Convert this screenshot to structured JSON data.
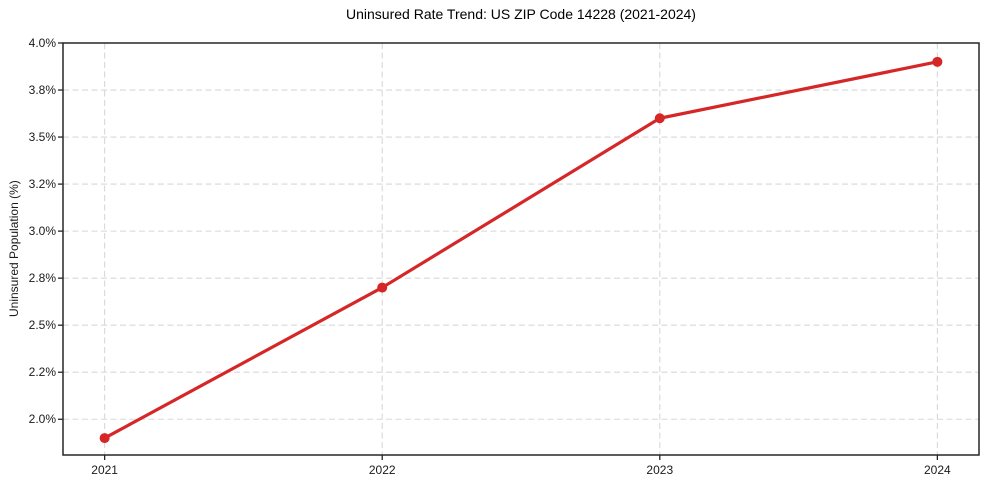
{
  "chart_data": {
    "type": "line",
    "title": "Uninsured Rate Trend: US ZIP Code 14228 (2021-2024)",
    "xlabel": "",
    "ylabel": "Uninsured Population (%)",
    "x": [
      2021,
      2022,
      2023,
      2024
    ],
    "x_tick_labels": [
      "2021",
      "2022",
      "2023",
      "2024"
    ],
    "series": [
      {
        "name": "Uninsured population percent",
        "values": [
          1.9,
          2.7,
          3.6,
          3.9
        ]
      }
    ],
    "y_ticks": [
      2.0,
      2.25,
      2.5,
      2.75,
      3.0,
      3.25,
      3.5,
      3.75,
      4.0
    ],
    "y_tick_labels": [
      "2.0%",
      "2.2%",
      "2.5%",
      "2.8%",
      "3.0%",
      "3.2%",
      "3.5%",
      "3.8%",
      "4.0%"
    ],
    "xlim": [
      2020.85,
      2024.15
    ],
    "ylim": [
      1.81,
      4.0
    ],
    "grid": true,
    "legend": false,
    "colors": {
      "line": "#d62728",
      "marker": "#d62728",
      "grid": "#d8d8d8",
      "spine": "#262626",
      "tick_label": "#1a1a1a",
      "title": "#000000",
      "background": "#ffffff"
    },
    "marker_style": "circle",
    "line_width": 3.2,
    "marker_radius": 5
  }
}
